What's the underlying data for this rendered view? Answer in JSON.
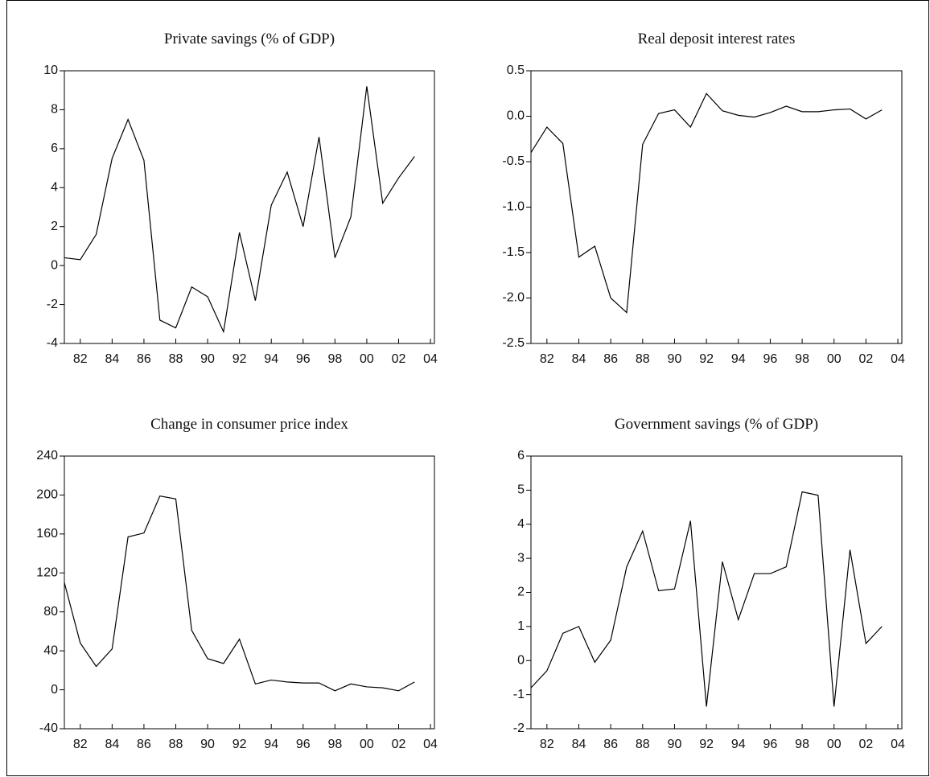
{
  "chart_data": [
    {
      "type": "line",
      "title": "Private savings (% of GDP)",
      "x": [
        1981,
        1982,
        1983,
        1984,
        1985,
        1986,
        1987,
        1988,
        1989,
        1990,
        1991,
        1992,
        1993,
        1994,
        1995,
        1996,
        1997,
        1998,
        1999,
        2000,
        2001,
        2002,
        2003
      ],
      "series": [
        {
          "color": "#000000",
          "values": [
            0.4,
            0.3,
            1.6,
            5.5,
            7.5,
            5.4,
            -2.8,
            -3.2,
            -1.1,
            -1.6,
            -3.4,
            1.7,
            -1.8,
            3.1,
            4.8,
            2.0,
            6.6,
            0.4,
            2.5,
            9.2,
            3.2,
            4.5,
            5.6
          ]
        }
      ],
      "xlim": [
        1981,
        2004.25
      ],
      "ylim": [
        -4,
        10
      ],
      "xticks": [
        {
          "value": 1982,
          "label": "82"
        },
        {
          "value": 1984,
          "label": "84"
        },
        {
          "value": 1986,
          "label": "86"
        },
        {
          "value": 1988,
          "label": "88"
        },
        {
          "value": 1990,
          "label": "90"
        },
        {
          "value": 1992,
          "label": "92"
        },
        {
          "value": 1994,
          "label": "94"
        },
        {
          "value": 1996,
          "label": "96"
        },
        {
          "value": 1998,
          "label": "98"
        },
        {
          "value": 2000,
          "label": "00"
        },
        {
          "value": 2002,
          "label": "02"
        },
        {
          "value": 2004,
          "label": "04"
        }
      ],
      "yticks": [
        -4,
        -2,
        0,
        2,
        4,
        6,
        8,
        10
      ]
    },
    {
      "type": "line",
      "title": "Real deposit interest rates",
      "x": [
        1981,
        1982,
        1983,
        1984,
        1985,
        1986,
        1987,
        1988,
        1989,
        1990,
        1991,
        1992,
        1993,
        1994,
        1995,
        1996,
        1997,
        1998,
        1999,
        2000,
        2001,
        2002,
        2003
      ],
      "series": [
        {
          "color": "#000000",
          "values": [
            -0.4,
            -0.12,
            -0.3,
            -1.55,
            -1.43,
            -2.0,
            -2.16,
            -0.31,
            0.03,
            0.07,
            -0.12,
            0.25,
            0.06,
            0.01,
            -0.01,
            0.04,
            0.11,
            0.05,
            0.05,
            0.07,
            0.08,
            -0.03,
            0.07
          ]
        }
      ],
      "xlim": [
        1981,
        2004.25
      ],
      "ylim": [
        -2.5,
        0.5
      ],
      "xticks": [
        {
          "value": 1982,
          "label": "82"
        },
        {
          "value": 1984,
          "label": "84"
        },
        {
          "value": 1986,
          "label": "86"
        },
        {
          "value": 1988,
          "label": "88"
        },
        {
          "value": 1990,
          "label": "90"
        },
        {
          "value": 1992,
          "label": "92"
        },
        {
          "value": 1994,
          "label": "94"
        },
        {
          "value": 1996,
          "label": "96"
        },
        {
          "value": 1998,
          "label": "98"
        },
        {
          "value": 2000,
          "label": "00"
        },
        {
          "value": 2002,
          "label": "02"
        },
        {
          "value": 2004,
          "label": "04"
        }
      ],
      "yticks": [
        -2.5,
        {
          "value": -2,
          "label": "-2.0"
        },
        -1.5,
        {
          "value": -1,
          "label": "-1.0"
        },
        -0.5,
        {
          "value": 0,
          "label": "0.0"
        },
        0.5
      ]
    },
    {
      "type": "line",
      "title": "Change in consumer price index",
      "x": [
        1981,
        1982,
        1983,
        1984,
        1985,
        1986,
        1987,
        1988,
        1989,
        1990,
        1991,
        1992,
        1993,
        1994,
        1995,
        1996,
        1997,
        1998,
        1999,
        2000,
        2001,
        2002,
        2003
      ],
      "series": [
        {
          "color": "#000000",
          "values": [
            110,
            48,
            24,
            42,
            157,
            161,
            199,
            196,
            61,
            32,
            27,
            52,
            6,
            10,
            8,
            7,
            7,
            -1,
            6,
            3,
            2,
            -1,
            8
          ]
        }
      ],
      "xlim": [
        1981,
        2004.25
      ],
      "ylim": [
        -40,
        240
      ],
      "xticks": [
        {
          "value": 1982,
          "label": "82"
        },
        {
          "value": 1984,
          "label": "84"
        },
        {
          "value": 1986,
          "label": "86"
        },
        {
          "value": 1988,
          "label": "88"
        },
        {
          "value": 1990,
          "label": "90"
        },
        {
          "value": 1992,
          "label": "92"
        },
        {
          "value": 1994,
          "label": "94"
        },
        {
          "value": 1996,
          "label": "96"
        },
        {
          "value": 1998,
          "label": "98"
        },
        {
          "value": 2000,
          "label": "00"
        },
        {
          "value": 2002,
          "label": "02"
        },
        {
          "value": 2004,
          "label": "04"
        }
      ],
      "yticks": [
        -40,
        0,
        40,
        80,
        120,
        160,
        200,
        240
      ]
    },
    {
      "type": "line",
      "title": "Government savings (% of GDP)",
      "x": [
        1981,
        1982,
        1983,
        1984,
        1985,
        1986,
        1987,
        1988,
        1989,
        1990,
        1991,
        1992,
        1993,
        1994,
        1995,
        1996,
        1997,
        1998,
        1999,
        2000,
        2001,
        2002,
        2003
      ],
      "series": [
        {
          "color": "#000000",
          "values": [
            -0.8,
            -0.3,
            0.8,
            1.0,
            -0.05,
            0.6,
            2.75,
            3.8,
            2.05,
            2.1,
            4.1,
            -1.35,
            2.9,
            1.2,
            2.55,
            2.55,
            2.75,
            4.95,
            4.85,
            -1.35,
            3.25,
            0.5,
            1.0
          ]
        }
      ],
      "xlim": [
        1981,
        2004.25
      ],
      "ylim": [
        -2,
        6
      ],
      "xticks": [
        {
          "value": 1982,
          "label": "82"
        },
        {
          "value": 1984,
          "label": "84"
        },
        {
          "value": 1986,
          "label": "86"
        },
        {
          "value": 1988,
          "label": "88"
        },
        {
          "value": 1990,
          "label": "90"
        },
        {
          "value": 1992,
          "label": "92"
        },
        {
          "value": 1994,
          "label": "94"
        },
        {
          "value": 1996,
          "label": "96"
        },
        {
          "value": 1998,
          "label": "98"
        },
        {
          "value": 2000,
          "label": "00"
        },
        {
          "value": 2002,
          "label": "02"
        },
        {
          "value": 2004,
          "label": "04"
        }
      ],
      "yticks": [
        -2,
        -1,
        0,
        1,
        2,
        3,
        4,
        5,
        6
      ]
    }
  ]
}
